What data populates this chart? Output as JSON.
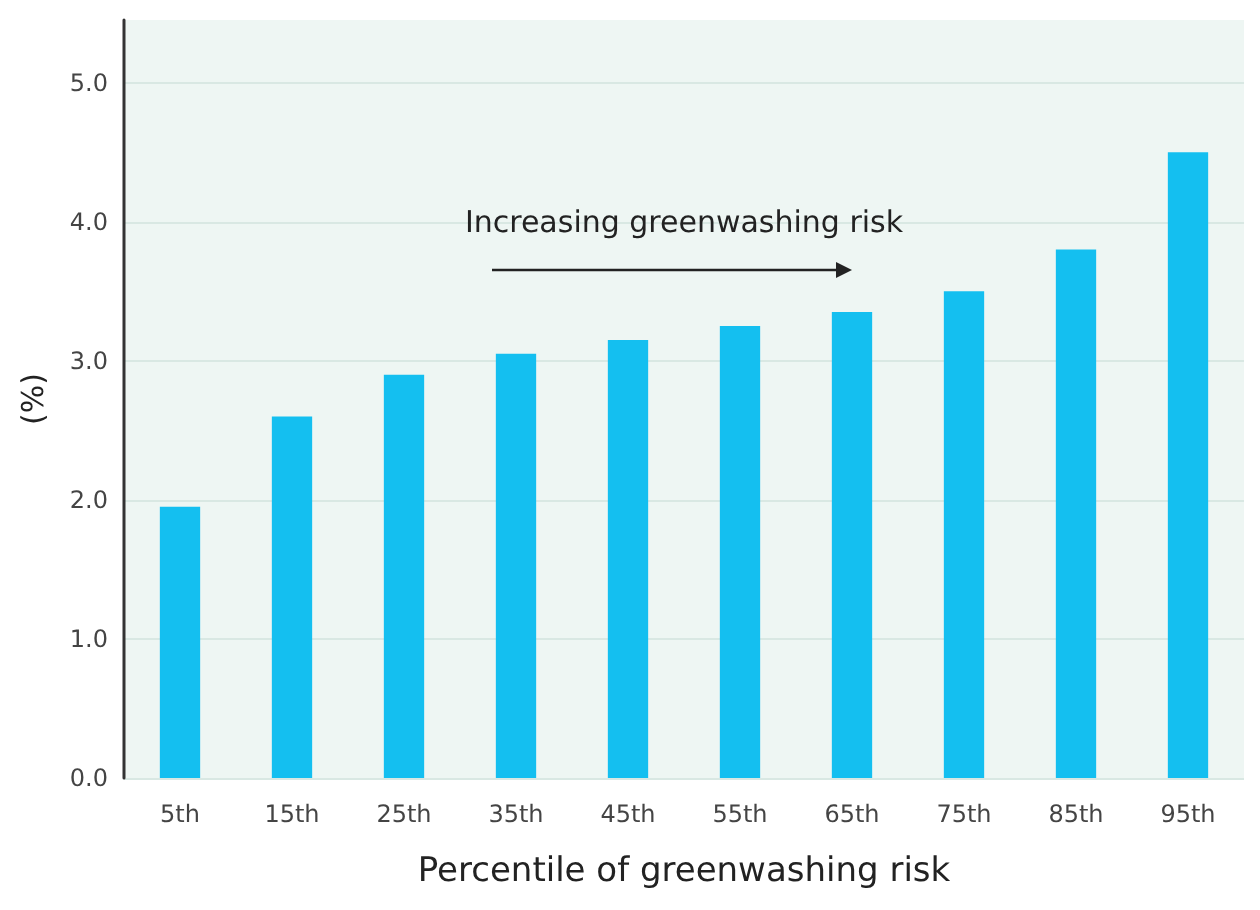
{
  "chart_data": {
    "type": "bar",
    "xlabel": "Percentile of greenwashing risk",
    "ylabel": "(%)",
    "categories": [
      "5th",
      "15th",
      "25th",
      "35th",
      "45th",
      "55th",
      "65th",
      "75th",
      "85th",
      "95th"
    ],
    "values": [
      1.95,
      2.6,
      2.9,
      3.05,
      3.15,
      3.25,
      3.35,
      3.5,
      3.8,
      4.5
    ],
    "color": "#14bff0",
    "ylim": [
      0,
      5.45
    ],
    "yticks": [
      {
        "value": 0,
        "label": "0.0"
      },
      {
        "value": 1,
        "label": "1.0"
      },
      {
        "value": 2,
        "label": "2.0"
      },
      {
        "value": 3,
        "label": "3.0"
      },
      {
        "value": 4,
        "label": "4.0"
      },
      {
        "value": 5,
        "label": "5.0"
      }
    ],
    "grid": "y",
    "annotations": [
      "Increasing greenwashing risk"
    ]
  }
}
